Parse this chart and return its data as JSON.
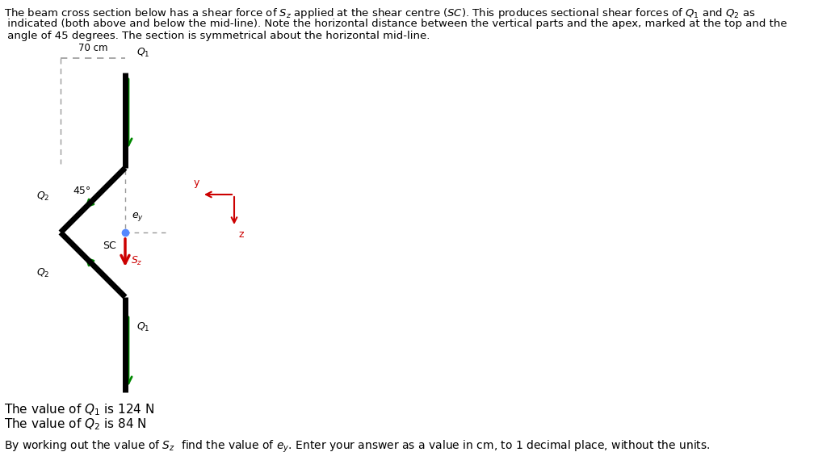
{
  "dim_label": "70 cm",
  "angle_label": "45°",
  "Q1_label": "$Q_1$",
  "Q2_label": "$Q_2$",
  "SC_label": "SC",
  "Sz_label": "$S_z$",
  "ey_label": "$e_y$",
  "y_label": "y",
  "z_label": "z",
  "bottom_text1": "The value of $Q_1$ is 124 N",
  "bottom_text2": "The value of $Q_2$ is 84 N",
  "bottom_text3": "By working out the value of $S_z$  find the value of $e_y$. Enter your answer as a value in cm, to 1 decimal place, without the units.",
  "bg_color": "#ffffff",
  "beam_color": "#000000",
  "green_color": "#008800",
  "red_color": "#cc0000",
  "blue_dot_color": "#5588ff",
  "dashed_color": "#999999",
  "title_line1": "The beam cross section below has a shear force of $S_z$ applied at the shear centre $(SC)$. This produces sectional shear forces of $Q_1$ and $Q_2$ as",
  "title_line2": " indicated (both above and below the mid-line). Note the horizontal distance between the vertical parts and the apex, marked at the top and the",
  "title_line3": " angle of 45 degrees. The section is symmetrical about the horizontal mid-line."
}
